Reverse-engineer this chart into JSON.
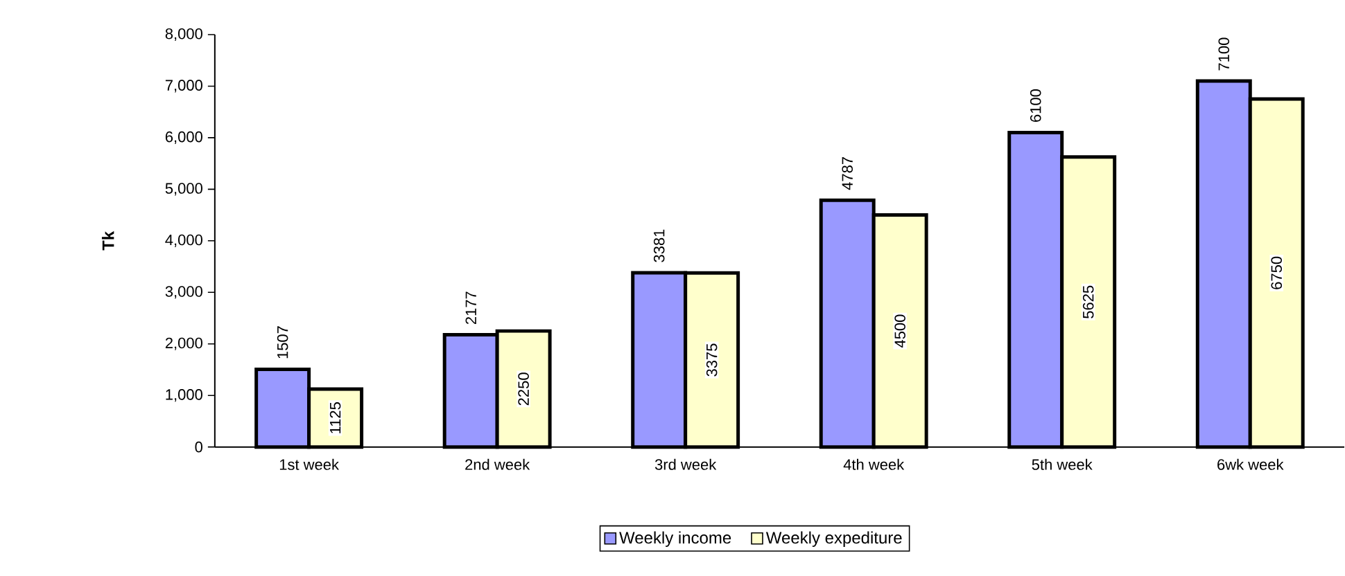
{
  "chart_data": {
    "type": "bar",
    "ylabel": "Tk",
    "categories": [
      "1st week",
      "2nd week",
      "3rd week",
      "4th week",
      "5th week",
      "6wk week"
    ],
    "series": [
      {
        "name": "Weekly income",
        "color": "#9999ff",
        "values": [
          1507,
          2177,
          3381,
          4787,
          6100,
          7100
        ],
        "value_labels": [
          "1507",
          "2177",
          "3381",
          "4787",
          "6100",
          "7100"
        ]
      },
      {
        "name": "Weekly expediture",
        "color": "#ffffcc",
        "values": [
          1125,
          2250,
          3375,
          4500,
          5625,
          6750
        ],
        "value_labels": [
          "1125",
          "2250",
          "3375",
          "4500",
          "5625",
          "6750"
        ]
      }
    ],
    "ylim": [
      0,
      8000
    ],
    "yticks": [
      0,
      {
        "value": 1000,
        "label": "1,000"
      },
      {
        "value": 2000,
        "label": "2,000"
      },
      {
        "value": 3000,
        "label": "3,000"
      },
      {
        "value": 4000,
        "label": "4,000"
      },
      {
        "value": 5000,
        "label": "5,000"
      },
      {
        "value": 6000,
        "label": "6,000"
      },
      {
        "value": 7000,
        "label": "7,000"
      },
      {
        "value": 8000,
        "label": "8,000"
      }
    ],
    "grid": false,
    "legend": "bottom"
  }
}
